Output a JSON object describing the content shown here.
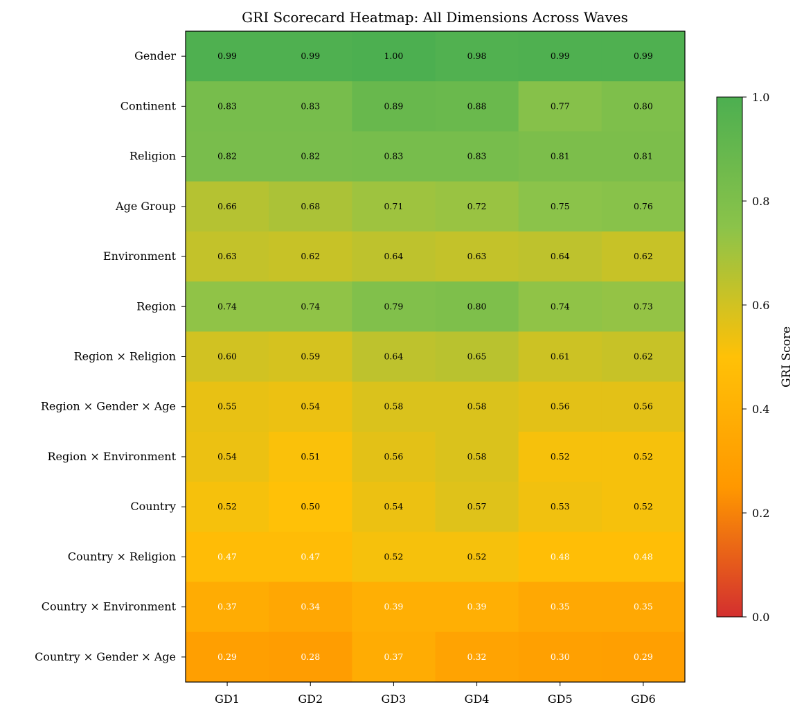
{
  "chart_data": {
    "type": "heatmap",
    "title": "GRI Scorecard Heatmap: All Dimensions Across Waves",
    "xlabel": "",
    "ylabel": "",
    "columns": [
      "GD1",
      "GD2",
      "GD3",
      "GD4",
      "GD5",
      "GD6"
    ],
    "rows": [
      "Gender",
      "Continent",
      "Religion",
      "Age Group",
      "Environment",
      "Region",
      "Region × Religion",
      "Region × Gender × Age",
      "Region × Environment",
      "Country",
      "Country × Religion",
      "Country × Environment",
      "Country × Gender × Age"
    ],
    "values": [
      [
        0.99,
        0.99,
        1.0,
        0.98,
        0.99,
        0.99
      ],
      [
        0.83,
        0.83,
        0.89,
        0.88,
        0.77,
        0.8
      ],
      [
        0.82,
        0.82,
        0.83,
        0.83,
        0.81,
        0.81
      ],
      [
        0.66,
        0.68,
        0.71,
        0.72,
        0.75,
        0.76
      ],
      [
        0.63,
        0.62,
        0.64,
        0.63,
        0.64,
        0.62
      ],
      [
        0.74,
        0.74,
        0.79,
        0.8,
        0.74,
        0.73
      ],
      [
        0.6,
        0.59,
        0.64,
        0.65,
        0.61,
        0.62
      ],
      [
        0.55,
        0.54,
        0.58,
        0.58,
        0.56,
        0.56
      ],
      [
        0.54,
        0.51,
        0.56,
        0.58,
        0.52,
        0.52
      ],
      [
        0.52,
        0.5,
        0.54,
        0.57,
        0.53,
        0.52
      ],
      [
        0.47,
        0.47,
        0.52,
        0.52,
        0.48,
        0.48
      ],
      [
        0.37,
        0.34,
        0.39,
        0.39,
        0.35,
        0.35
      ],
      [
        0.29,
        0.28,
        0.37,
        0.32,
        0.3,
        0.29
      ]
    ],
    "colorbar": {
      "label": "GRI Score",
      "range": [
        0,
        1
      ],
      "ticks": [
        "0.0",
        "0.2",
        "0.4",
        "0.6",
        "0.8",
        "1.0"
      ],
      "colors": [
        "#d32f2f",
        "#ff9800",
        "#ffc107",
        "#8bc34a",
        "#4caf50"
      ]
    }
  }
}
